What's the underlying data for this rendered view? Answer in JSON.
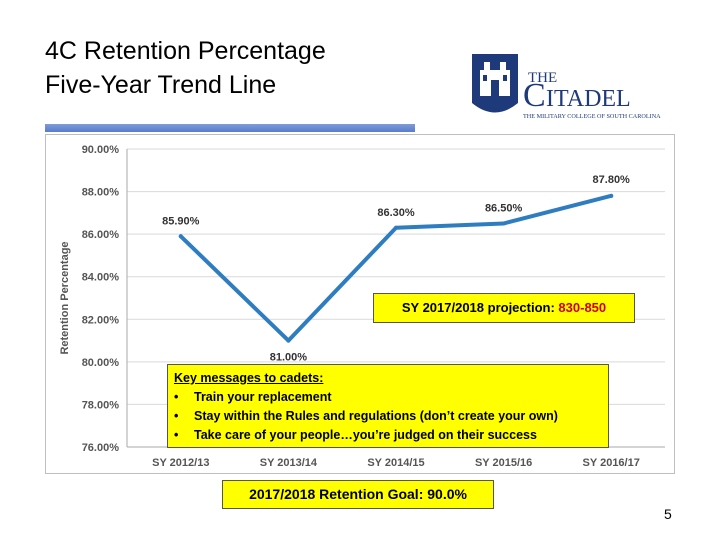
{
  "slide": {
    "title_line1": "4C Retention Percentage",
    "title_line2": "Five-Year Trend Line",
    "page_number": "5",
    "logo": {
      "text_main": "THE CITADEL",
      "text_sub": "THE MILITARY COLLEGE OF SOUTH CAROLINA",
      "color": "#1f3a7a"
    }
  },
  "chart_data": {
    "type": "line",
    "title": "",
    "xlabel": "",
    "ylabel": "Retention Percentage",
    "categories": [
      "SY 2012/13",
      "SY 2013/14",
      "SY 2014/15",
      "SY 2015/16",
      "SY 2016/17"
    ],
    "values": [
      85.9,
      81.0,
      86.3,
      86.5,
      87.8
    ],
    "data_labels": [
      "85.90%",
      "81.00%",
      "86.30%",
      "86.50%",
      "87.80%"
    ],
    "yticks": [
      "90.00%",
      "88.00%",
      "86.00%",
      "84.00%",
      "82.00%",
      "80.00%",
      "78.00%",
      "76.00%"
    ],
    "ylim": [
      76,
      90
    ],
    "grid": true,
    "line_color": "#2e7dc1"
  },
  "callouts": {
    "projection_label": "SY 2017/2018 projection:",
    "projection_value": "830-850",
    "messages_heading": "Key messages to cadets:",
    "messages": [
      "Train your replacement",
      "Stay within the Rules and regulations (don’t create your own)",
      "Take care of your people…you’re judged on their  success"
    ],
    "goal": "2017/2018  Retention Goal: 90.0%"
  }
}
